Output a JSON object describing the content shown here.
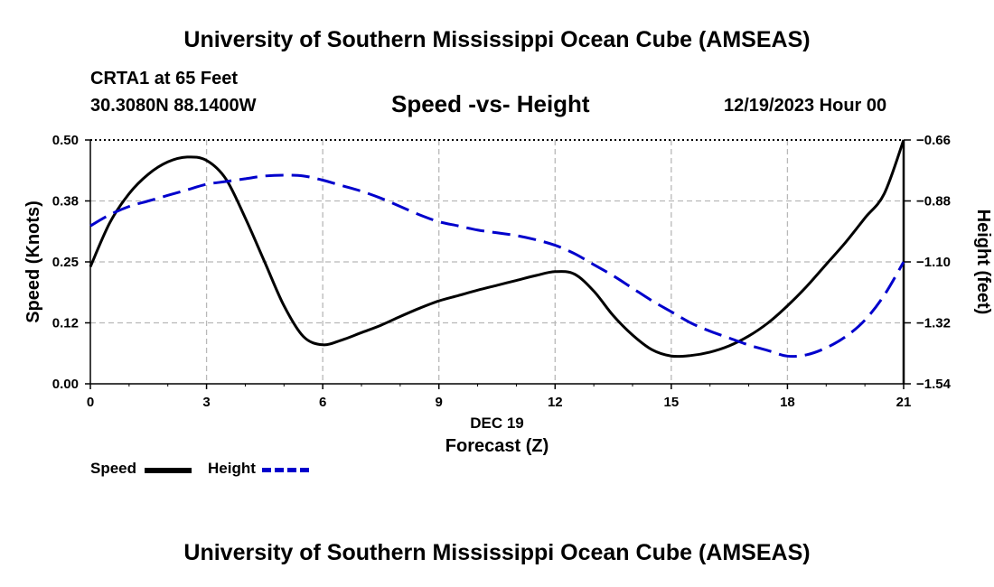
{
  "header": {
    "title": "University of Southern Mississippi Ocean Cube (AMSEAS)",
    "station": "CRTA1 at 65 Feet",
    "coords": "30.3080N  88.1400W",
    "date": "12/19/2023 Hour 00"
  },
  "footer": {
    "title": "University of Southern Mississippi Ocean Cube (AMSEAS)"
  },
  "legend": {
    "speed_label": "Speed",
    "height_label": "Height"
  },
  "colors": {
    "speed": "#000000",
    "height": "#0000cc",
    "grid": "#b8b8b8"
  },
  "chart_data": {
    "type": "line",
    "title": "Speed -vs- Height",
    "xlabel": "Forecast (Z)",
    "xlabel_sub": "DEC 19",
    "ylabel": "Speed (Knots)",
    "y2label": "Height (feet)",
    "xlim": [
      0,
      21
    ],
    "ylim": [
      0,
      0.5
    ],
    "y2lim": [
      -1.54,
      -0.66
    ],
    "x_ticks": [
      0,
      3,
      6,
      9,
      12,
      15,
      18,
      21
    ],
    "x_tick_labels": [
      "0",
      "3",
      "6",
      "9",
      "12",
      "15",
      "18",
      "21"
    ],
    "y_ticks": [
      0,
      0.125,
      0.25,
      0.375,
      0.5
    ],
    "y_tick_labels": [
      "0.00",
      "0.12",
      "0.25",
      "0.38",
      "0.50"
    ],
    "y2_ticks": [
      -1.54,
      -1.32,
      -1.1,
      -0.88,
      -0.66
    ],
    "y2_tick_labels": [
      "−1.54",
      "−1.32",
      "−1.10",
      "−0.88",
      "−0.66"
    ],
    "series": [
      {
        "name": "Speed",
        "axis": "left",
        "style": "solid",
        "x": [
          0,
          0.5,
          1,
          1.5,
          2,
          2.5,
          3,
          3.5,
          4,
          4.5,
          5,
          5.5,
          6,
          6.5,
          7,
          7.5,
          8,
          8.5,
          9,
          9.5,
          10,
          10.5,
          11,
          11.5,
          12,
          12.5,
          13,
          13.5,
          14,
          14.5,
          15,
          15.5,
          16,
          16.5,
          17,
          17.5,
          18,
          18.5,
          19,
          19.5,
          20,
          20.5,
          21
        ],
        "values": [
          0.24,
          0.33,
          0.39,
          0.43,
          0.455,
          0.465,
          0.458,
          0.42,
          0.34,
          0.25,
          0.16,
          0.097,
          0.08,
          0.09,
          0.105,
          0.12,
          0.138,
          0.155,
          0.17,
          0.181,
          0.192,
          0.202,
          0.212,
          0.222,
          0.23,
          0.225,
          0.19,
          0.14,
          0.1,
          0.07,
          0.057,
          0.058,
          0.065,
          0.078,
          0.098,
          0.125,
          0.16,
          0.2,
          0.245,
          0.29,
          0.34,
          0.39,
          0.5
        ]
      },
      {
        "name": "Height",
        "axis": "right",
        "style": "dashed",
        "x": [
          0,
          0.5,
          1,
          1.5,
          2,
          2.5,
          3,
          3.5,
          4,
          4.5,
          5,
          5.5,
          6,
          6.5,
          7,
          7.5,
          8,
          8.5,
          9,
          9.5,
          10,
          10.5,
          11,
          11.5,
          12,
          12.5,
          13,
          13.5,
          14,
          14.5,
          15,
          15.5,
          16,
          16.5,
          17,
          17.5,
          18,
          18.5,
          19,
          19.5,
          20,
          20.5,
          21
        ],
        "values": [
          -0.97,
          -0.93,
          -0.9,
          -0.88,
          -0.86,
          -0.84,
          -0.82,
          -0.81,
          -0.8,
          -0.79,
          -0.787,
          -0.79,
          -0.805,
          -0.825,
          -0.845,
          -0.87,
          -0.9,
          -0.93,
          -0.955,
          -0.97,
          -0.985,
          -0.995,
          -1.005,
          -1.02,
          -1.04,
          -1.07,
          -1.11,
          -1.15,
          -1.195,
          -1.24,
          -1.28,
          -1.32,
          -1.35,
          -1.375,
          -1.4,
          -1.42,
          -1.44,
          -1.435,
          -1.41,
          -1.37,
          -1.31,
          -1.22,
          -1.1
        ]
      }
    ]
  }
}
